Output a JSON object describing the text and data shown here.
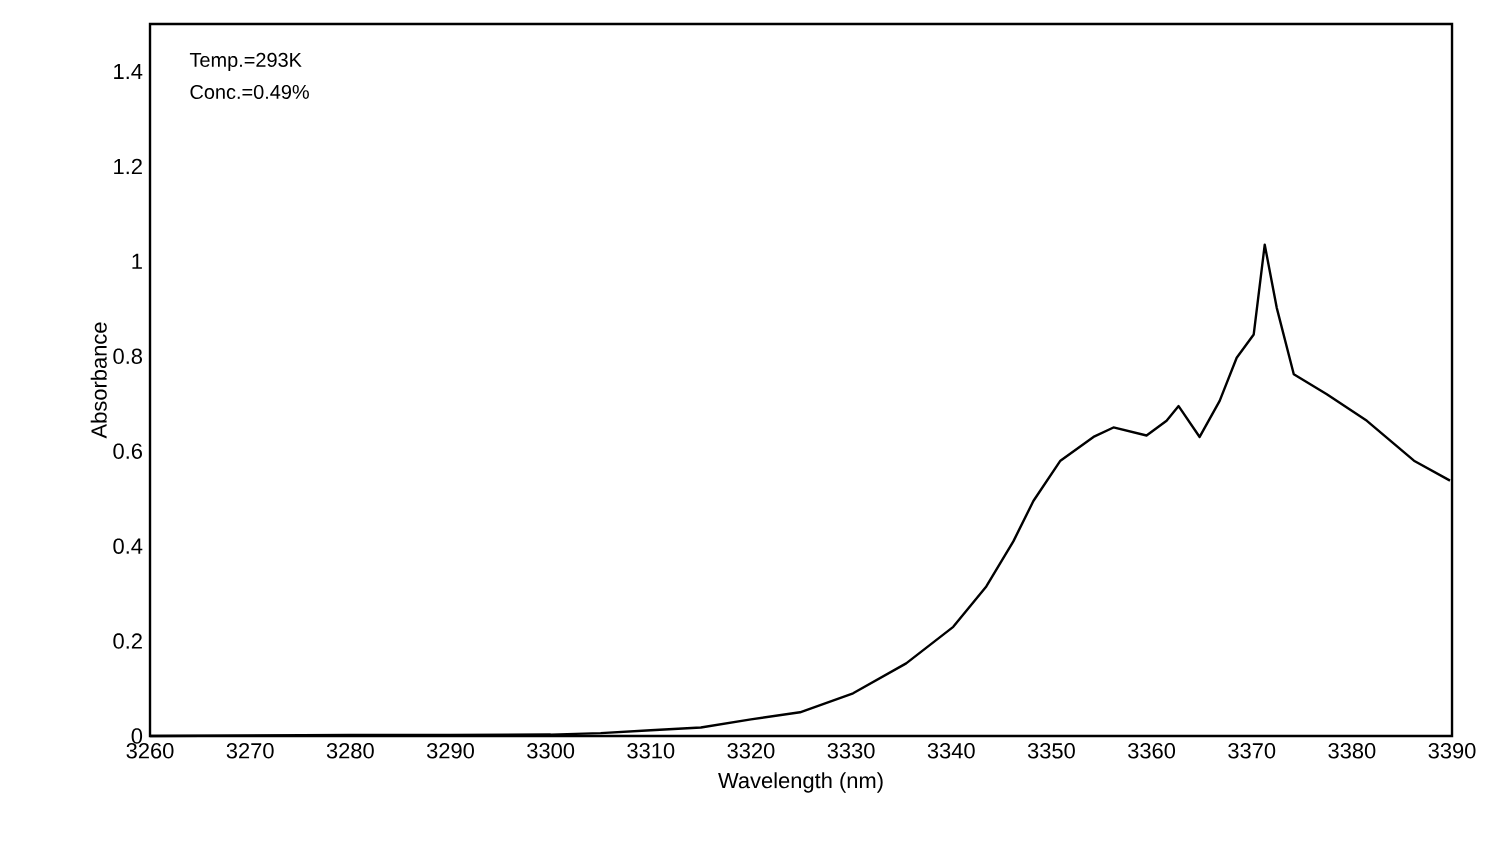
{
  "chart_data": {
    "type": "line",
    "xlabel": "Wavelength (nm)",
    "ylabel": "Absorbance",
    "annotations": [
      "Temp.=293K",
      "Conc.=0.49%"
    ],
    "x": [
      3260,
      3270,
      3280,
      3290,
      3300,
      3305,
      3310,
      3315,
      3320,
      3324.9,
      3330.2,
      3335.5,
      3340.2,
      3343.5,
      3346.2,
      3348.2,
      3350.9,
      3354.2,
      3356.2,
      3359.5,
      3361.5,
      3362.7,
      3364.8,
      3366.8,
      3368.5,
      3370.2,
      3371.3,
      3372.5,
      3374.2,
      3377.5,
      3381.5,
      3386.2,
      3389.8
    ],
    "series": [
      {
        "color": "#000000",
        "values": [
          0,
          0.001,
          0.002,
          0.002,
          0.003,
          0.006,
          0.012,
          0.018,
          0.035,
          0.05,
          0.09,
          0.153,
          0.23,
          0.315,
          0.41,
          0.495,
          0.58,
          0.63,
          0.65,
          0.633,
          0.664,
          0.695,
          0.63,
          0.706,
          0.797,
          0.846,
          1.035,
          0.902,
          0.762,
          0.72,
          0.664,
          0.58,
          0.538
        ]
      }
    ],
    "xlim": [
      3260,
      3390
    ],
    "ylim": [
      0,
      1.5
    ],
    "xticks": [
      3260,
      3270,
      3280,
      3290,
      3300,
      3310,
      3320,
      3330,
      3340,
      3350,
      3360,
      3370,
      3380,
      3390
    ],
    "yticks": [
      0,
      0.2,
      0.4,
      0.6,
      0.8,
      1,
      1.2,
      1.4
    ]
  }
}
